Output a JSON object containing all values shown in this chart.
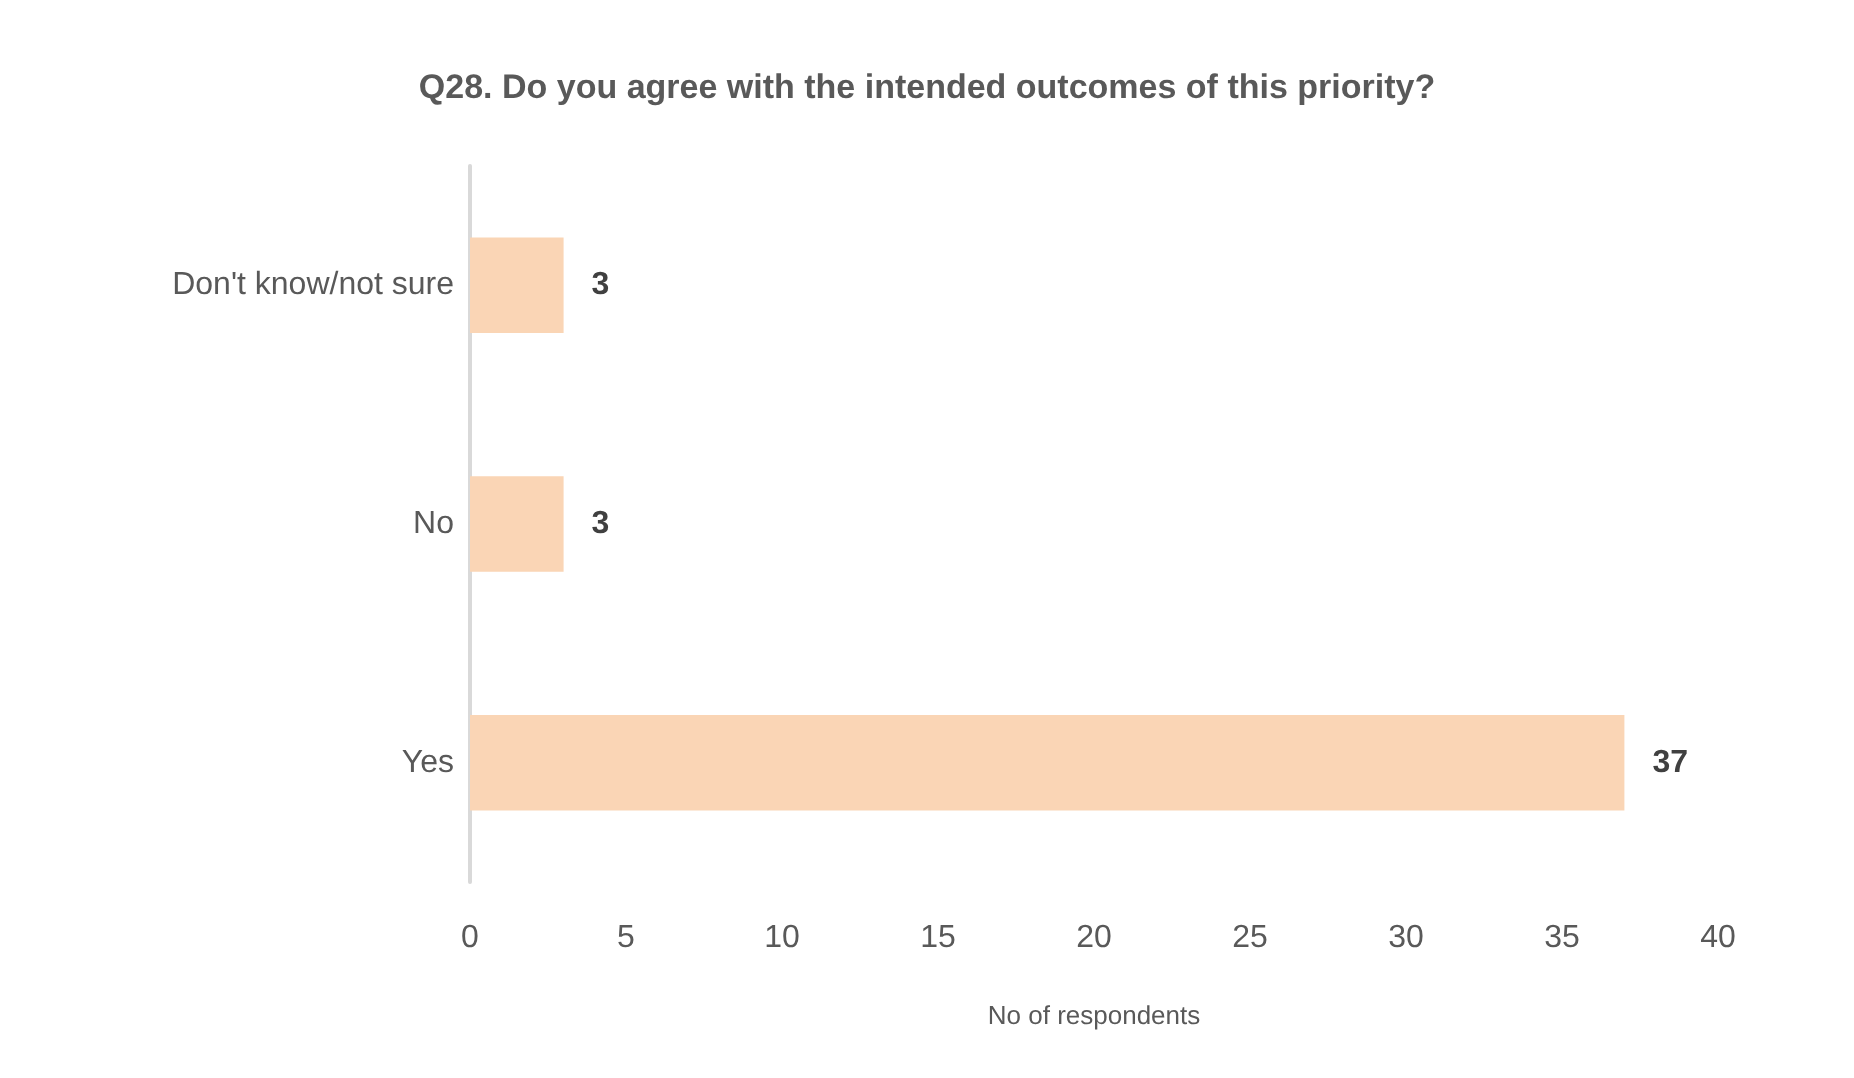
{
  "chart_data": {
    "type": "bar",
    "orientation": "horizontal",
    "title": "Q28. Do you agree with the intended outcomes of this priority?",
    "xlabel": "No of respondents",
    "categories": [
      "Don't know/not sure",
      "No",
      "Yes"
    ],
    "values": [
      3,
      3,
      37
    ],
    "color": "#fad5b5",
    "xlim": [
      0,
      40
    ],
    "xticks": [
      0,
      5,
      10,
      15,
      20,
      25,
      30,
      35,
      40
    ],
    "grid": false,
    "data_labels": true
  }
}
